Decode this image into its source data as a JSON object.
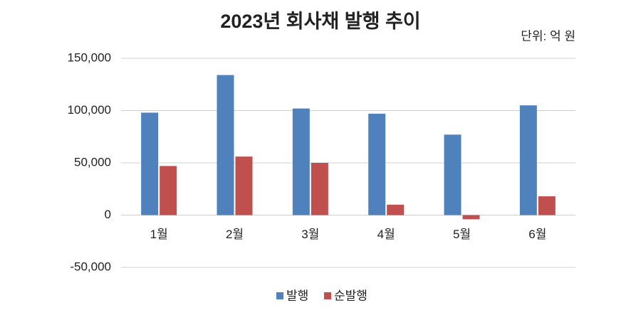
{
  "chart_data": {
    "type": "bar",
    "title": "2023년 회사채 발행 추이",
    "subtitle": "단위: 억 원",
    "categories": [
      "1월",
      "2월",
      "3월",
      "4월",
      "5월",
      "6월"
    ],
    "series": [
      {
        "name": "발행",
        "color": "#4f81bd",
        "values": [
          98000,
          134000,
          102000,
          97000,
          77000,
          105000
        ]
      },
      {
        "name": "순발행",
        "color": "#c0504d",
        "values": [
          47000,
          56000,
          50000,
          10000,
          -4000,
          18000
        ]
      }
    ],
    "ylim": [
      -50000,
      150000
    ],
    "yticks": [
      {
        "value": -50000,
        "label": "-50,000"
      },
      0,
      {
        "value": 50000,
        "label": "50,000"
      },
      {
        "value": 100000,
        "label": "100,000"
      },
      {
        "value": 150000,
        "label": "150,000"
      }
    ],
    "grid": true,
    "legend": "bottom"
  }
}
